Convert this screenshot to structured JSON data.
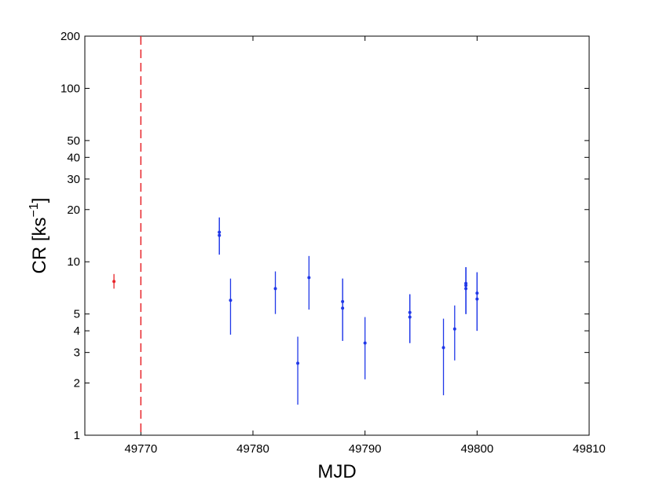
{
  "chart_data": {
    "type": "scatter",
    "xlabel": "MJD",
    "ylabel": "CR [ks",
    "ylabel_sup": "−1",
    "ylabel_close": "]",
    "x_scale": "linear",
    "y_scale": "log",
    "xlim": [
      49765,
      49810
    ],
    "ylim": [
      1,
      200
    ],
    "x_ticks": [
      49770,
      49780,
      49790,
      49800,
      49810
    ],
    "y_ticks": [
      1,
      2,
      3,
      4,
      5,
      10,
      20,
      30,
      40,
      50,
      100,
      200
    ],
    "grid": false,
    "vline": {
      "x": 49770,
      "style": "dashed",
      "color": "#e8262b"
    },
    "series": [
      {
        "color": "#e8262b",
        "points": [
          {
            "x": 49767.6,
            "y": 7.7,
            "lo": 7.0,
            "hi": 8.5
          }
        ]
      },
      {
        "color": "#2038e8",
        "points": [
          {
            "x": 49777.0,
            "y": 14.2,
            "lo": 11.0,
            "hi": 18.0
          },
          {
            "x": 49777.0,
            "y": 14.8,
            "lo": 11.0,
            "hi": 18.0
          },
          {
            "x": 49778.0,
            "y": 6.0,
            "lo": 3.8,
            "hi": 8.0
          },
          {
            "x": 49782.0,
            "y": 7.0,
            "lo": 5.0,
            "hi": 8.8
          },
          {
            "x": 49784.0,
            "y": 2.6,
            "lo": 1.5,
            "hi": 3.7
          },
          {
            "x": 49785.0,
            "y": 8.1,
            "lo": 5.3,
            "hi": 10.8
          },
          {
            "x": 49788.0,
            "y": 5.9,
            "lo": 3.5,
            "hi": 8.0
          },
          {
            "x": 49788.0,
            "y": 5.4,
            "lo": 3.5,
            "hi": 8.0
          },
          {
            "x": 49790.0,
            "y": 3.4,
            "lo": 2.1,
            "hi": 4.8
          },
          {
            "x": 49794.0,
            "y": 5.1,
            "lo": 3.4,
            "hi": 6.5
          },
          {
            "x": 49794.0,
            "y": 4.8,
            "lo": 3.4,
            "hi": 6.5
          },
          {
            "x": 49797.0,
            "y": 3.2,
            "lo": 1.7,
            "hi": 4.7
          },
          {
            "x": 49798.0,
            "y": 4.1,
            "lo": 2.7,
            "hi": 5.6
          },
          {
            "x": 49799.0,
            "y": 7.0,
            "lo": 5.0,
            "hi": 9.3
          },
          {
            "x": 49799.0,
            "y": 7.5,
            "lo": 5.0,
            "hi": 9.3
          },
          {
            "x": 49799.0,
            "y": 7.3,
            "lo": 5.0,
            "hi": 9.3
          },
          {
            "x": 49800.0,
            "y": 6.1,
            "lo": 4.0,
            "hi": 8.7
          },
          {
            "x": 49800.0,
            "y": 6.6,
            "lo": 4.0,
            "hi": 8.7
          }
        ]
      }
    ]
  }
}
